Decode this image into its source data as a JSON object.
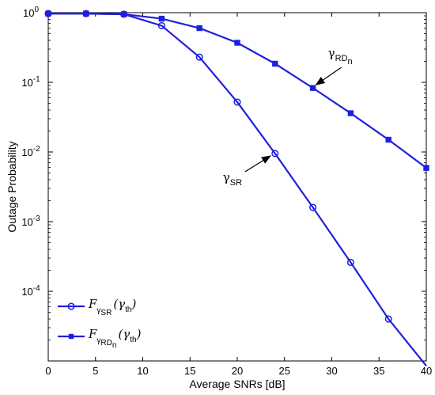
{
  "chart_data": {
    "type": "line",
    "xlabel": "Average SNRs [dB]",
    "ylabel": "Outage Probability",
    "xlim": [
      0,
      40
    ],
    "ylim": [
      1e-05,
      1
    ],
    "yscale": "log",
    "grid": false,
    "legend_position": "bottom-left",
    "x_ticks": [
      "0",
      "5",
      "10",
      "15",
      "20",
      "25",
      "30",
      "35",
      "40"
    ],
    "y_ticks": [
      {
        "base": "10",
        "exp": "0",
        "value": 1
      },
      {
        "base": "10",
        "exp": "-1",
        "value": 0.1
      },
      {
        "base": "10",
        "exp": "-2",
        "value": 0.01
      },
      {
        "base": "10",
        "exp": "-3",
        "value": 0.001
      },
      {
        "base": "10",
        "exp": "-4",
        "value": 0.0001
      }
    ],
    "series": [
      {
        "name": "F_γSR(γth)",
        "marker": "circle",
        "color": "#1f1fe0",
        "x": [
          0,
          4,
          8,
          12,
          16,
          20,
          24,
          28,
          32,
          36,
          40
        ],
        "y": [
          0.97,
          0.97,
          0.95,
          0.65,
          0.23,
          0.052,
          0.0095,
          0.0016,
          0.00026,
          4e-05,
          8.5e-06
        ]
      },
      {
        "name": "F_γRDn(γth)",
        "marker": "square",
        "color": "#1f1fe0",
        "x": [
          0,
          4,
          8,
          12,
          16,
          20,
          24,
          28,
          32,
          36,
          40
        ],
        "y": [
          0.97,
          0.97,
          0.95,
          0.82,
          0.6,
          0.37,
          0.185,
          0.083,
          0.036,
          0.015,
          0.0059
        ]
      }
    ],
    "annotations": [
      {
        "base": "γ",
        "sub": "SR",
        "target_x": 24,
        "target_y": 0.0095
      },
      {
        "base": "γ",
        "sub": "RD",
        "subsub": "n",
        "target_x": 28,
        "target_y": 0.083
      }
    ],
    "legend": [
      {
        "base": "F",
        "sub": "γ",
        "subsub": "SR",
        "arg_open": "(γ",
        "arg_sub": "th",
        "arg_close": ")"
      },
      {
        "base": "F",
        "sub": "γ",
        "subsub": "RD",
        "subsubsub": "n",
        "arg_open": "(γ",
        "arg_sub": "th",
        "arg_close": ")"
      }
    ]
  }
}
